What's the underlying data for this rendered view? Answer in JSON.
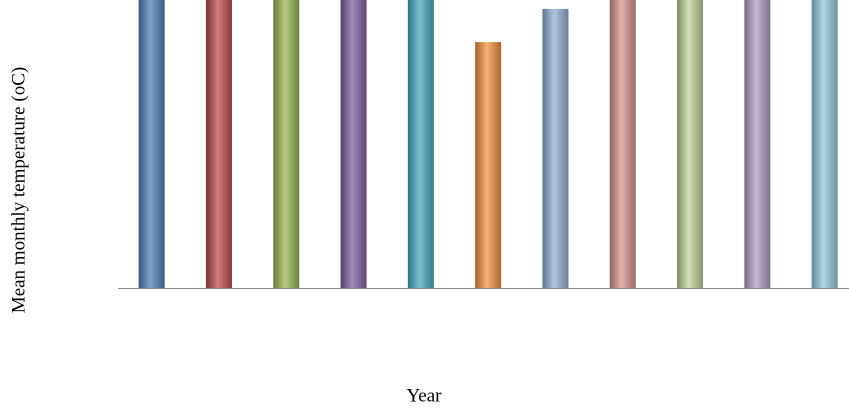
{
  "chart_data": {
    "type": "bar",
    "ylabel": "Mean monthly temperature (oC)",
    "xlabel": "Year",
    "categories": [
      null,
      null,
      null,
      null,
      null,
      null,
      null,
      null,
      null,
      null,
      null
    ],
    "values": [
      100,
      100,
      100,
      100,
      100,
      85.4,
      96.9,
      100,
      100,
      100,
      100
    ],
    "colors": [
      "#4f81bd",
      "#c0504d",
      "#9bbb59",
      "#8064a2",
      "#4bacc6",
      "#f79646",
      "#95b3d7",
      "#d99694",
      "#c3d69b",
      "#b3a2c7",
      "#93cddd"
    ],
    "ylim": [
      0,
      100
    ]
  }
}
